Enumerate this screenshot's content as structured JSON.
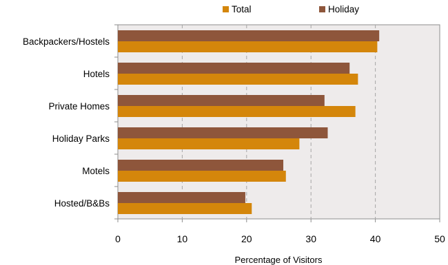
{
  "chart_data": {
    "type": "bar",
    "orientation": "horizontal",
    "categories": [
      "Backpackers/Hostels",
      "Hotels",
      "Private Homes",
      "Holiday Parks",
      "Motels",
      "Hosted/B&Bs"
    ],
    "series": [
      {
        "name": "Total",
        "color": "#D4860B",
        "values": [
          40.3,
          37.3,
          36.9,
          28.2,
          26.1,
          20.8
        ]
      },
      {
        "name": "Holiday",
        "color": "#8E563B",
        "values": [
          40.6,
          36.0,
          32.1,
          32.6,
          25.7,
          19.8
        ]
      }
    ],
    "xlabel": "Percentage of Visitors",
    "ylabel": "",
    "xlim": [
      0,
      50
    ],
    "xticks": [
      "0",
      "10",
      "20",
      "30",
      "40",
      "50"
    ],
    "grid": "vertical dashed",
    "legend_position": "top",
    "plot_background": "#EEEBEB"
  }
}
